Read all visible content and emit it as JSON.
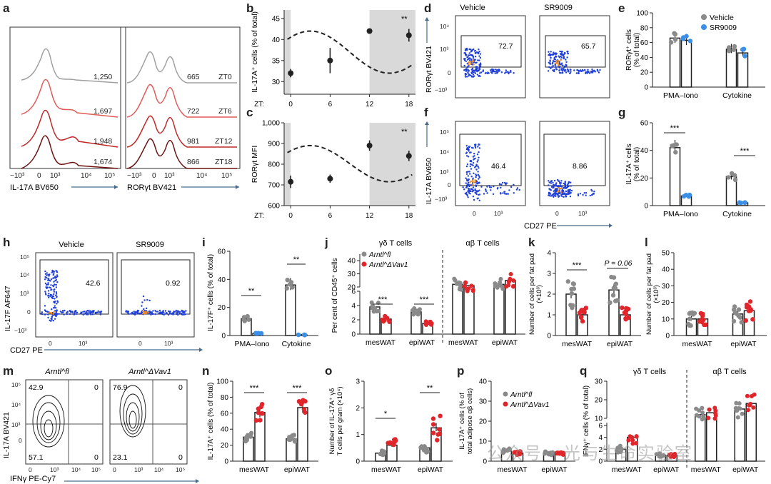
{
  "panels": {
    "a": {
      "label": "a",
      "xlabel": "IL-17A BV650",
      "ylabel": "",
      "left_values": [
        "1,250",
        "1,697",
        "1,948",
        "1,674"
      ],
      "right_values": [
        "665",
        "722",
        "981",
        "866"
      ],
      "zt": [
        "ZT0",
        "ZT6",
        "ZT12",
        "ZT18"
      ],
      "xticks": [
        "−10³",
        "0",
        "10³",
        "10⁴",
        "10⁵"
      ],
      "right_xlabel": "RORγt BV421",
      "right_xticks": [
        "−10³",
        "0",
        "10³",
        "10⁴",
        "10⁵"
      ]
    },
    "b": {
      "label": "b",
      "sig": "**",
      "ylabel": "IL-17A⁺ cells (% of total)"
    },
    "c": {
      "label": "c",
      "sig": "**",
      "ylabel": "RORγt MFI"
    },
    "d": {
      "label": "d",
      "title_left": "Vehicle",
      "title_right": "SR9009",
      "gate_left": "72.7",
      "gate_right": "65.7",
      "ylabel": "RORγt BV421"
    },
    "e": {
      "label": "e",
      "ylabel": "RORγt⁺ cells (% of total)",
      "legend": [
        "Vehicle",
        "SR9009"
      ],
      "xcats": [
        "PMA–Iono",
        "Cytokine"
      ]
    },
    "f": {
      "label": "f",
      "gate_left": "46.4",
      "gate_right": "8.86",
      "ylabel": "IL-17A BV650",
      "xlabel": "CD27 PE"
    },
    "g": {
      "label": "g",
      "ylabel": "IL-17A⁺ cells (% of total)",
      "xcats": [
        "PMA–Iono",
        "Cytokine"
      ],
      "sig": [
        "***",
        "***"
      ]
    },
    "h": {
      "label": "h",
      "title_left": "Vehicle",
      "title_right": "SR9009",
      "gate_left": "42.6",
      "gate_right": "0.92",
      "ylabel": "IL-17F AF647",
      "xlabel": "CD27 PE"
    },
    "i": {
      "label": "i",
      "ylabel": "IL-17F⁺ cells (% of total)",
      "xcats": [
        "PMA–Iono",
        "Cytokine"
      ],
      "sig": [
        "**",
        "**"
      ]
    },
    "j": {
      "label": "j",
      "title_gd": "γδ T cells",
      "title_ab": "αβ T cells",
      "legend": [
        "Arntl^fl",
        "Arntl^ΔVav1"
      ],
      "ylabel": "Per cent of CD45⁺ cells",
      "xcats": [
        "mesWAT",
        "epiWAT",
        "mesWAT",
        "epiWAT"
      ],
      "sig": [
        "***",
        "***"
      ]
    },
    "k": {
      "label": "k",
      "ylabel": "Number of cells per fat pad (×10³)",
      "xcats": [
        "mesWAT",
        "epiWAT"
      ],
      "sig": "***",
      "pval": "P = 0.06"
    },
    "l": {
      "label": "l",
      "ylabel": "Number of cells per fat pad (×10³)",
      "xcats": [
        "mesWAT",
        "epiWAT"
      ]
    },
    "m": {
      "label": "m",
      "title_left": "Arntl^fl",
      "title_right": "Arntl^ΔVav1",
      "q_left": [
        "42.9",
        "0",
        "57.1",
        "0"
      ],
      "q_right": [
        "76.9",
        "0",
        "23.1",
        "0"
      ],
      "ylabel": "IL-17A BV421",
      "xlabel": "IFNγ PE-Cy7"
    },
    "n": {
      "label": "n",
      "ylabel": "IL-17A⁺ cells (% of total)",
      "xcats": [
        "mesWAT",
        "epiWAT"
      ],
      "sig": [
        "***",
        "***"
      ]
    },
    "o": {
      "label": "o",
      "ylabel": "Number of IL-17A⁺ γδ T cells per gram (×10⁴)",
      "xcats": [
        "mesWAT",
        "epiWAT"
      ],
      "sig": [
        "*",
        "**"
      ]
    },
    "p": {
      "label": "p",
      "ylabel": "IL-17A⁺ cells (% of total adipose αβ cells)",
      "legend": [
        "Arntl^fl",
        "Arntl^ΔVav1"
      ],
      "xcats": [
        "mesWAT",
        "epiWAT"
      ]
    },
    "q": {
      "label": "q",
      "title_gd": "γδ T cells",
      "title_ab": "αβ T cells",
      "ylabel": "IFNγ⁺ cells (% of total)",
      "xcats": [
        "mesWAT",
        "epiWAT",
        "mesWAT",
        "epiWAT"
      ]
    }
  },
  "chart_data": [
    {
      "panel": "b",
      "type": "line",
      "x": [
        0,
        6,
        12,
        18
      ],
      "y": [
        32,
        35,
        42,
        41
      ],
      "yerr": [
        1,
        3,
        0.5,
        1.5
      ],
      "xlabel": "ZT",
      "ylabel": "IL-17A⁺ cells (% of total)",
      "ylim": [
        27,
        47
      ],
      "yticks": [
        30,
        35,
        40,
        45
      ],
      "xticks": [
        0,
        6,
        12,
        18
      ],
      "shaded": [
        [
          -1,
          0
        ],
        [
          12,
          19
        ]
      ]
    },
    {
      "panel": "c",
      "type": "line",
      "x": [
        0,
        6,
        12,
        18
      ],
      "y": [
        715,
        730,
        890,
        840
      ],
      "yerr": [
        30,
        20,
        25,
        25
      ],
      "xlabel": "ZT",
      "ylabel": "RORγt MFI",
      "ylim": [
        600,
        1000
      ],
      "yticks": [
        600,
        700,
        800,
        900,
        1000
      ],
      "xticks": [
        0,
        6,
        12,
        18
      ],
      "shaded": [
        [
          -1,
          0
        ],
        [
          12,
          19
        ]
      ]
    },
    {
      "panel": "e",
      "type": "bar",
      "categories": [
        "PMA–Iono",
        "Cytokine"
      ],
      "series": [
        {
          "name": "Vehicle",
          "values": [
            66,
            51
          ]
        },
        {
          "name": "SR9009",
          "values": [
            63,
            46
          ]
        }
      ],
      "ylim": [
        0,
        100
      ],
      "yticks": [
        0,
        20,
        40,
        60,
        80,
        100
      ]
    },
    {
      "panel": "g",
      "type": "bar",
      "categories": [
        "PMA–Iono",
        "Cytokine"
      ],
      "series": [
        {
          "name": "Vehicle",
          "values": [
            42,
            21
          ]
        },
        {
          "name": "SR9009",
          "values": [
            7,
            2
          ]
        }
      ],
      "ylim": [
        0,
        60
      ],
      "yticks": [
        0,
        20,
        40,
        60
      ]
    },
    {
      "panel": "i",
      "type": "bar",
      "categories": [
        "PMA–Iono",
        "Cytokine"
      ],
      "series": [
        {
          "name": "Vehicle",
          "values": [
            12,
            36
          ]
        },
        {
          "name": "SR9009",
          "values": [
            1.5,
            0.5
          ]
        }
      ],
      "ylim": [
        0,
        60
      ],
      "yticks": [
        0,
        20,
        40,
        60
      ]
    },
    {
      "panel": "j",
      "type": "bar",
      "categories": [
        "mesWAT",
        "epiWAT",
        "mesWAT",
        "epiWAT"
      ],
      "series": [
        {
          "name": "Arntl^fl",
          "values": [
            3.8,
            3.1,
            22,
            22
          ]
        },
        {
          "name": "Arntl^ΔVav1",
          "values": [
            2.1,
            1.5,
            21,
            25
          ]
        }
      ],
      "ylim": [
        0,
        45
      ],
      "yticks": [
        0,
        2,
        4,
        6,
        20,
        30,
        40
      ]
    },
    {
      "panel": "k",
      "type": "bar",
      "categories": [
        "mesWAT",
        "epiWAT"
      ],
      "series": [
        {
          "name": "Arntl^fl",
          "values": [
            2.0,
            2.2
          ]
        },
        {
          "name": "Arntl^ΔVav1",
          "values": [
            1.0,
            1.0
          ]
        }
      ],
      "ylim": [
        0,
        4
      ],
      "yticks": [
        0,
        1,
        2,
        3,
        4
      ]
    },
    {
      "panel": "l",
      "type": "bar",
      "categories": [
        "mesWAT",
        "epiWAT"
      ],
      "series": [
        {
          "name": "Arntl^fl",
          "values": [
            10,
            13
          ]
        },
        {
          "name": "Arntl^ΔVav1",
          "values": [
            10,
            15
          ]
        }
      ],
      "ylim": [
        0,
        50
      ],
      "yticks": [
        0,
        10,
        20,
        30,
        40,
        50
      ]
    },
    {
      "panel": "n",
      "type": "bar",
      "categories": [
        "mesWAT",
        "epiWAT"
      ],
      "series": [
        {
          "name": "Arntl^fl",
          "values": [
            30,
            28
          ]
        },
        {
          "name": "Arntl^ΔVav1",
          "values": [
            61,
            67
          ]
        }
      ],
      "ylim": [
        0,
        100
      ],
      "yticks": [
        0,
        20,
        40,
        60,
        80,
        100
      ]
    },
    {
      "panel": "o",
      "type": "bar",
      "categories": [
        "mesWAT",
        "epiWAT"
      ],
      "series": [
        {
          "name": "Arntl^fl",
          "values": [
            0.3,
            0.5
          ]
        },
        {
          "name": "Arntl^ΔVav1",
          "values": [
            0.6,
            1.25
          ]
        }
      ],
      "ylim": [
        0,
        3
      ],
      "yticks": [
        0,
        1,
        2,
        3
      ]
    },
    {
      "panel": "p",
      "type": "bar",
      "categories": [
        "mesWAT",
        "epiWAT"
      ],
      "series": [
        {
          "name": "Arntl^fl",
          "values": [
            5,
            4
          ]
        },
        {
          "name": "Arntl^ΔVav1",
          "values": [
            4,
            4
          ]
        }
      ],
      "ylim": [
        0,
        40
      ],
      "yticks": [
        0,
        10,
        20,
        30,
        40
      ]
    },
    {
      "panel": "q",
      "type": "bar",
      "categories": [
        "mesWAT",
        "epiWAT",
        "mesWAT",
        "epiWAT"
      ],
      "series": [
        {
          "name": "Arntl^fl",
          "values": [
            2,
            1,
            12,
            15
          ]
        },
        {
          "name": "Arntl^ΔVav1",
          "values": [
            4,
            1,
            13,
            18
          ]
        }
      ],
      "ylim": [
        0,
        30
      ],
      "yticks": [
        0,
        2,
        4,
        6,
        10,
        20,
        30
      ]
    }
  ],
  "watermark": "公众号 · 光与生命实验室"
}
